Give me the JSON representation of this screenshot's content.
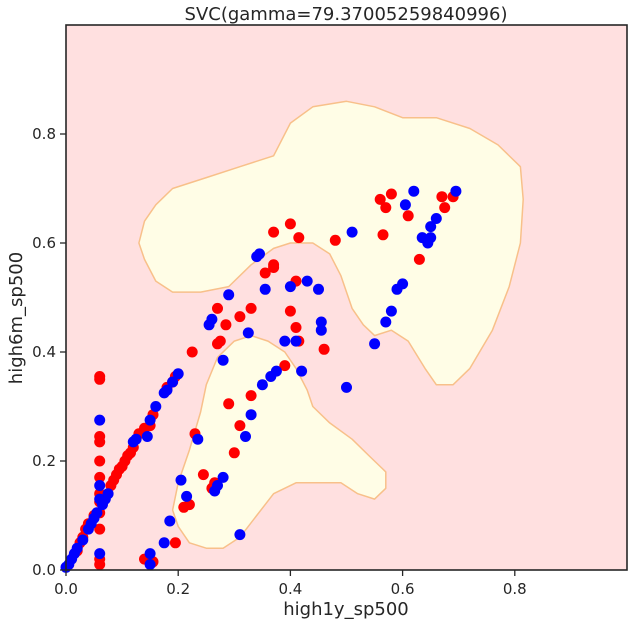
{
  "chart_data": {
    "type": "scatter",
    "title": "SVC(gamma=79.37005259840996)",
    "xlabel": "high1y_sp500",
    "ylabel": "high6m_sp500",
    "xlim": [
      0.0,
      1.0
    ],
    "ylim": [
      0.0,
      1.0
    ],
    "xticks": [
      0.0,
      0.2,
      0.4,
      0.6,
      0.8
    ],
    "yticks": [
      0.0,
      0.2,
      0.4,
      0.6,
      0.8
    ],
    "xtick_labels": [
      "0.0",
      "0.2",
      "0.4",
      "0.6",
      "0.8"
    ],
    "ytick_labels": [
      "0.0",
      "0.2",
      "0.4",
      "0.6",
      "0.8"
    ],
    "grid": false,
    "colors": {
      "background_region": "#ffe0e0",
      "decision_region": "#fffde6",
      "boundary": "#f8c08a",
      "class_red": "#ff0000",
      "class_blue": "#0000ff"
    },
    "decision_regions": [
      [
        [
          0.14,
          0.57
        ],
        [
          0.13,
          0.6
        ],
        [
          0.14,
          0.64
        ],
        [
          0.16,
          0.67
        ],
        [
          0.19,
          0.7
        ],
        [
          0.25,
          0.72
        ],
        [
          0.31,
          0.74
        ],
        [
          0.37,
          0.76
        ],
        [
          0.4,
          0.82
        ],
        [
          0.44,
          0.85
        ],
        [
          0.5,
          0.86
        ],
        [
          0.55,
          0.85
        ],
        [
          0.6,
          0.83
        ],
        [
          0.66,
          0.83
        ],
        [
          0.72,
          0.81
        ],
        [
          0.77,
          0.78
        ],
        [
          0.81,
          0.74
        ],
        [
          0.815,
          0.68
        ],
        [
          0.81,
          0.6
        ],
        [
          0.79,
          0.52
        ],
        [
          0.76,
          0.44
        ],
        [
          0.72,
          0.37
        ],
        [
          0.69,
          0.34
        ],
        [
          0.66,
          0.34
        ],
        [
          0.64,
          0.37
        ],
        [
          0.61,
          0.42
        ],
        [
          0.58,
          0.44
        ],
        [
          0.55,
          0.43
        ],
        [
          0.53,
          0.45
        ],
        [
          0.51,
          0.48
        ],
        [
          0.49,
          0.54
        ],
        [
          0.47,
          0.58
        ],
        [
          0.44,
          0.6
        ],
        [
          0.4,
          0.6
        ],
        [
          0.37,
          0.59
        ],
        [
          0.33,
          0.56
        ],
        [
          0.29,
          0.52
        ],
        [
          0.24,
          0.51
        ],
        [
          0.19,
          0.51
        ],
        [
          0.16,
          0.53
        ]
      ],
      [
        [
          0.2,
          0.08
        ],
        [
          0.19,
          0.11
        ],
        [
          0.2,
          0.16
        ],
        [
          0.22,
          0.22
        ],
        [
          0.24,
          0.29
        ],
        [
          0.25,
          0.34
        ],
        [
          0.27,
          0.39
        ],
        [
          0.3,
          0.42
        ],
        [
          0.33,
          0.43
        ],
        [
          0.36,
          0.42
        ],
        [
          0.39,
          0.4
        ],
        [
          0.41,
          0.37
        ],
        [
          0.43,
          0.33
        ],
        [
          0.44,
          0.3
        ],
        [
          0.47,
          0.27
        ],
        [
          0.51,
          0.24
        ],
        [
          0.54,
          0.21
        ],
        [
          0.57,
          0.18
        ],
        [
          0.57,
          0.15
        ],
        [
          0.55,
          0.13
        ],
        [
          0.52,
          0.14
        ],
        [
          0.49,
          0.16
        ],
        [
          0.45,
          0.16
        ],
        [
          0.41,
          0.16
        ],
        [
          0.37,
          0.14
        ],
        [
          0.34,
          0.1
        ],
        [
          0.31,
          0.06
        ],
        [
          0.28,
          0.04
        ],
        [
          0.25,
          0.04
        ],
        [
          0.22,
          0.05
        ]
      ]
    ],
    "series": [
      {
        "color": "#ff0000",
        "points": [
          [
            0.06,
            0.355
          ],
          [
            0.06,
            0.35
          ],
          [
            0.06,
            0.245
          ],
          [
            0.06,
            0.235
          ],
          [
            0.06,
            0.2
          ],
          [
            0.06,
            0.17
          ],
          [
            0.06,
            0.14
          ],
          [
            0.06,
            0.125
          ],
          [
            0.06,
            0.105
          ],
          [
            0.06,
            0.075
          ],
          [
            0.06,
            0.02
          ],
          [
            0.06,
            0.01
          ],
          [
            0.02,
            0.035
          ],
          [
            0.025,
            0.05
          ],
          [
            0.03,
            0.06
          ],
          [
            0.035,
            0.075
          ],
          [
            0.04,
            0.085
          ],
          [
            0.05,
            0.1
          ],
          [
            0.08,
            0.155
          ],
          [
            0.085,
            0.165
          ],
          [
            0.09,
            0.175
          ],
          [
            0.095,
            0.185
          ],
          [
            0.1,
            0.19
          ],
          [
            0.105,
            0.2
          ],
          [
            0.11,
            0.21
          ],
          [
            0.115,
            0.215
          ],
          [
            0.12,
            0.225
          ],
          [
            0.13,
            0.25
          ],
          [
            0.14,
            0.26
          ],
          [
            0.15,
            0.265
          ],
          [
            0.155,
            0.285
          ],
          [
            0.18,
            0.335
          ],
          [
            0.19,
            0.345
          ],
          [
            0.195,
            0.355
          ],
          [
            0.14,
            0.02
          ],
          [
            0.155,
            0.015
          ],
          [
            0.195,
            0.05
          ],
          [
            0.21,
            0.115
          ],
          [
            0.22,
            0.12
          ],
          [
            0.225,
            0.4
          ],
          [
            0.23,
            0.25
          ],
          [
            0.245,
            0.175
          ],
          [
            0.26,
            0.15
          ],
          [
            0.265,
            0.16
          ],
          [
            0.27,
            0.415
          ],
          [
            0.275,
            0.42
          ],
          [
            0.27,
            0.48
          ],
          [
            0.285,
            0.45
          ],
          [
            0.29,
            0.305
          ],
          [
            0.3,
            0.215
          ],
          [
            0.31,
            0.265
          ],
          [
            0.31,
            0.465
          ],
          [
            0.33,
            0.32
          ],
          [
            0.33,
            0.48
          ],
          [
            0.355,
            0.545
          ],
          [
            0.37,
            0.555
          ],
          [
            0.37,
            0.56
          ],
          [
            0.37,
            0.62
          ],
          [
            0.39,
            0.375
          ],
          [
            0.4,
            0.475
          ],
          [
            0.4,
            0.635
          ],
          [
            0.41,
            0.445
          ],
          [
            0.41,
            0.53
          ],
          [
            0.415,
            0.61
          ],
          [
            0.415,
            0.42
          ],
          [
            0.46,
            0.405
          ],
          [
            0.48,
            0.605
          ],
          [
            0.56,
            0.68
          ],
          [
            0.565,
            0.615
          ],
          [
            0.57,
            0.665
          ],
          [
            0.58,
            0.69
          ],
          [
            0.61,
            0.65
          ],
          [
            0.63,
            0.57
          ],
          [
            0.67,
            0.685
          ],
          [
            0.675,
            0.665
          ],
          [
            0.69,
            0.685
          ]
        ]
      },
      {
        "color": "#0000ff",
        "points": [
          [
            0.06,
            0.275
          ],
          [
            0.06,
            0.155
          ],
          [
            0.06,
            0.13
          ],
          [
            0.06,
            0.03
          ],
          [
            0.0,
            0.005
          ],
          [
            0.005,
            0.01
          ],
          [
            0.01,
            0.02
          ],
          [
            0.015,
            0.03
          ],
          [
            0.02,
            0.04
          ],
          [
            0.03,
            0.055
          ],
          [
            0.04,
            0.075
          ],
          [
            0.045,
            0.085
          ],
          [
            0.05,
            0.095
          ],
          [
            0.055,
            0.105
          ],
          [
            0.065,
            0.12
          ],
          [
            0.07,
            0.13
          ],
          [
            0.075,
            0.14
          ],
          [
            0.12,
            0.235
          ],
          [
            0.125,
            0.24
          ],
          [
            0.145,
            0.245
          ],
          [
            0.15,
            0.275
          ],
          [
            0.16,
            0.3
          ],
          [
            0.175,
            0.325
          ],
          [
            0.18,
            0.33
          ],
          [
            0.19,
            0.345
          ],
          [
            0.2,
            0.36
          ],
          [
            0.15,
            0.03
          ],
          [
            0.15,
            0.01
          ],
          [
            0.175,
            0.05
          ],
          [
            0.185,
            0.09
          ],
          [
            0.205,
            0.165
          ],
          [
            0.215,
            0.135
          ],
          [
            0.235,
            0.24
          ],
          [
            0.255,
            0.45
          ],
          [
            0.26,
            0.46
          ],
          [
            0.265,
            0.145
          ],
          [
            0.27,
            0.155
          ],
          [
            0.28,
            0.17
          ],
          [
            0.28,
            0.385
          ],
          [
            0.29,
            0.505
          ],
          [
            0.31,
            0.065
          ],
          [
            0.32,
            0.245
          ],
          [
            0.325,
            0.435
          ],
          [
            0.33,
            0.285
          ],
          [
            0.34,
            0.575
          ],
          [
            0.345,
            0.58
          ],
          [
            0.35,
            0.34
          ],
          [
            0.355,
            0.515
          ],
          [
            0.365,
            0.355
          ],
          [
            0.375,
            0.365
          ],
          [
            0.39,
            0.42
          ],
          [
            0.4,
            0.52
          ],
          [
            0.41,
            0.42
          ],
          [
            0.42,
            0.365
          ],
          [
            0.43,
            0.53
          ],
          [
            0.45,
            0.515
          ],
          [
            0.455,
            0.455
          ],
          [
            0.455,
            0.44
          ],
          [
            0.5,
            0.335
          ],
          [
            0.51,
            0.62
          ],
          [
            0.55,
            0.415
          ],
          [
            0.57,
            0.455
          ],
          [
            0.58,
            0.475
          ],
          [
            0.59,
            0.515
          ],
          [
            0.6,
            0.525
          ],
          [
            0.605,
            0.67
          ],
          [
            0.62,
            0.695
          ],
          [
            0.635,
            0.61
          ],
          [
            0.645,
            0.6
          ],
          [
            0.65,
            0.61
          ],
          [
            0.65,
            0.63
          ],
          [
            0.66,
            0.645
          ],
          [
            0.695,
            0.695
          ]
        ]
      }
    ]
  }
}
